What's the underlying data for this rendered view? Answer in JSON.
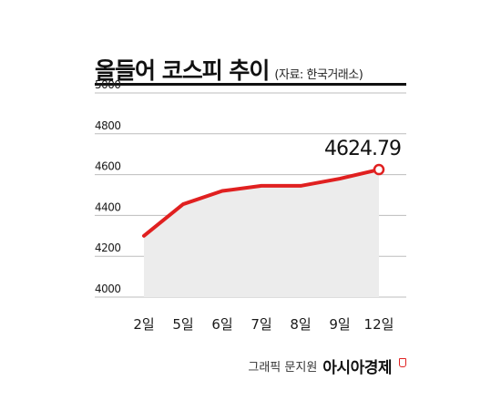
{
  "header": {
    "title": "올들어 코스피 추이",
    "source": "(자료: 한국거래소)"
  },
  "footer": {
    "credit": "그래픽 문지원",
    "brand": "아시아경제"
  },
  "colors": {
    "line": "#e02020",
    "area": "#ececec",
    "grid": "#bdbdbd",
    "text": "#1a1a1a"
  },
  "chart_data": {
    "type": "area",
    "categories": [
      "2일",
      "5일",
      "6일",
      "7일",
      "8일",
      "9일",
      "12일"
    ],
    "values": [
      4300,
      4455,
      4520,
      4545,
      4545,
      4580,
      4624.79
    ],
    "ylim": [
      4000,
      5000
    ],
    "yticks": [
      4000,
      4200,
      4400,
      4600,
      4800,
      5000
    ],
    "grid": true,
    "annotation": {
      "index": 6,
      "text": "4624.79"
    }
  }
}
